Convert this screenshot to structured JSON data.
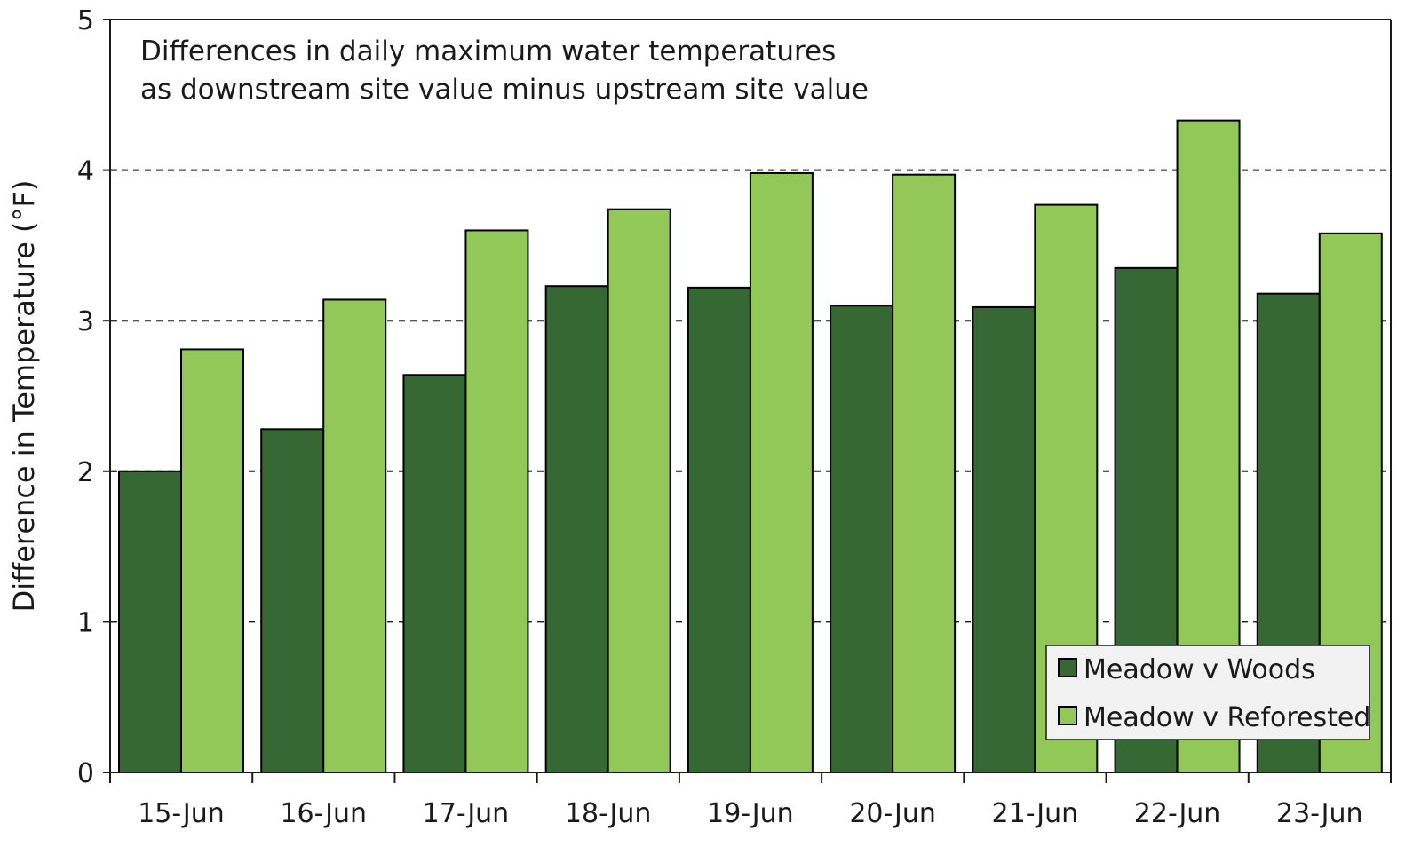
{
  "chart_data": {
    "type": "bar",
    "title_lines": [
      "Differences in daily maximum water temperatures",
      "as downstream site value minus upstream site value"
    ],
    "xlabel": "",
    "ylabel": "Difference in Temperature (°F)",
    "ylim": [
      0,
      5
    ],
    "yticks": [
      "0",
      "1",
      "2",
      "3",
      "4",
      "5"
    ],
    "grid": "dashed horizontal",
    "legend_position": "bottom-right",
    "categories": [
      "15-Jun",
      "16-Jun",
      "17-Jun",
      "18-Jun",
      "19-Jun",
      "20-Jun",
      "21-Jun",
      "22-Jun",
      "23-Jun"
    ],
    "series": [
      {
        "name": "Meadow v Woods",
        "color": "#356832",
        "values": [
          2.0,
          2.28,
          2.64,
          3.23,
          3.22,
          3.1,
          3.09,
          3.35,
          3.18
        ]
      },
      {
        "name": "Meadow v Reforested",
        "color": "#92c857",
        "values": [
          2.81,
          3.14,
          3.6,
          3.74,
          3.98,
          3.97,
          3.77,
          4.33,
          3.58
        ]
      }
    ]
  }
}
